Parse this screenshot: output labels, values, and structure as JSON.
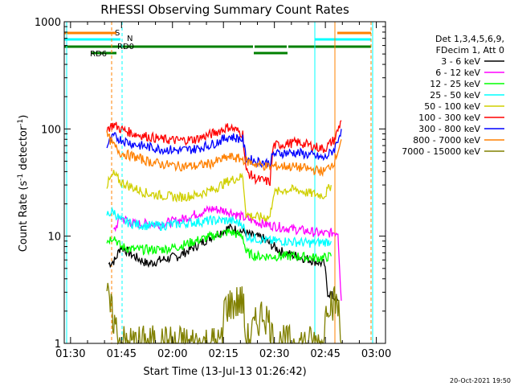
{
  "chart_data": {
    "type": "line",
    "title": "RHESSI Observing Summary Count Rates",
    "xlabel": "Start Time (13-Jul-13 01:26:42)",
    "ylabel_main": "Count Rate (s",
    "ylabel_exp1": "-1",
    "ylabel_mid": " detector",
    "ylabel_exp2": "-1",
    "ylabel_end": ")",
    "y_scale": "log",
    "ylim": [
      1,
      1000
    ],
    "xlim_minutes": [
      1.446,
      96.0
    ],
    "x_ticks": [
      {
        "label": "01:30",
        "m": 3.3
      },
      {
        "label": "01:45",
        "m": 18.3
      },
      {
        "label": "02:00",
        "m": 33.3
      },
      {
        "label": "02:15",
        "m": 48.3
      },
      {
        "label": "02:30",
        "m": 63.3
      },
      {
        "label": "02:45",
        "m": 78.3
      },
      {
        "label": "03:00",
        "m": 93.3
      }
    ],
    "y_ticks": [
      {
        "label": "1",
        "v": 1
      },
      {
        "label": "10",
        "v": 10
      },
      {
        "label": "100",
        "v": 100
      },
      {
        "label": "1000",
        "v": 1000
      }
    ],
    "legend_header": [
      "Det 1,3,4,5,6,9,",
      "FDecim 1, Att 0"
    ],
    "series": [
      {
        "name": "3 - 6 keV",
        "color": "#000000",
        "points": [
          [
            14.5,
            5.5
          ],
          [
            16.5,
            6
          ],
          [
            18,
            8
          ],
          [
            22,
            6.5
          ],
          [
            26,
            5.5
          ],
          [
            30,
            6
          ],
          [
            35,
            6.5
          ],
          [
            40,
            8
          ],
          [
            45,
            10
          ],
          [
            50,
            12
          ],
          [
            54,
            11
          ],
          [
            57,
            10
          ],
          [
            60,
            9.5
          ],
          [
            63,
            8
          ],
          [
            66,
            7
          ],
          [
            70,
            6.5
          ],
          [
            74,
            6
          ],
          [
            78,
            5.5
          ],
          [
            79,
            3
          ],
          [
            82,
            2.5
          ]
        ]
      },
      {
        "name": "6 - 12 keV",
        "color": "#ff00ff",
        "points": [
          [
            16,
            11
          ],
          [
            18,
            15
          ],
          [
            22,
            13
          ],
          [
            26,
            13
          ],
          [
            30,
            13
          ],
          [
            35,
            14
          ],
          [
            40,
            16
          ],
          [
            45,
            18
          ],
          [
            50,
            17
          ],
          [
            54,
            15
          ],
          [
            57,
            14
          ],
          [
            60,
            13
          ],
          [
            63,
            12.5
          ],
          [
            66,
            12
          ],
          [
            70,
            11.5
          ],
          [
            74,
            11
          ],
          [
            78,
            10.5
          ],
          [
            82,
            11
          ],
          [
            83,
            2.5
          ]
        ]
      },
      {
        "name": "12 - 25 keV",
        "color": "#00ff00",
        "points": [
          [
            14,
            9
          ],
          [
            16,
            10
          ],
          [
            18,
            8
          ],
          [
            22,
            7.5
          ],
          [
            26,
            7.5
          ],
          [
            30,
            7.5
          ],
          [
            35,
            8
          ],
          [
            40,
            9
          ],
          [
            45,
            10
          ],
          [
            50,
            11
          ],
          [
            54,
            10
          ],
          [
            55,
            7
          ],
          [
            58,
            6.5
          ],
          [
            62,
            6.5
          ],
          [
            66,
            6.5
          ],
          [
            70,
            6.5
          ],
          [
            74,
            6.3
          ],
          [
            78,
            6.3
          ],
          [
            80,
            6.5
          ]
        ]
      },
      {
        "name": "25 - 50 keV",
        "color": "#00ffff",
        "points": [
          [
            14,
            16
          ],
          [
            16,
            17
          ],
          [
            18,
            14
          ],
          [
            22,
            13
          ],
          [
            26,
            12.5
          ],
          [
            30,
            12.5
          ],
          [
            35,
            13
          ],
          [
            40,
            13.5
          ],
          [
            45,
            14
          ],
          [
            50,
            14
          ],
          [
            54,
            13
          ],
          [
            55,
            10
          ],
          [
            58,
            9.5
          ],
          [
            62,
            9
          ],
          [
            66,
            9
          ],
          [
            70,
            8.8
          ],
          [
            74,
            8.6
          ],
          [
            78,
            8.8
          ],
          [
            80,
            9
          ]
        ]
      },
      {
        "name": "50 - 100 keV",
        "color": "#d0d000",
        "points": [
          [
            14,
            30
          ],
          [
            16,
            38
          ],
          [
            18,
            32
          ],
          [
            22,
            28
          ],
          [
            26,
            25
          ],
          [
            30,
            24
          ],
          [
            35,
            23
          ],
          [
            40,
            24
          ],
          [
            45,
            27
          ],
          [
            50,
            33
          ],
          [
            54,
            36
          ],
          [
            55,
            16
          ],
          [
            58,
            15
          ],
          [
            62,
            15
          ],
          [
            63,
            25
          ],
          [
            66,
            27
          ],
          [
            70,
            27
          ],
          [
            74,
            25
          ],
          [
            78,
            24
          ],
          [
            80,
            30
          ]
        ]
      },
      {
        "name": "100 - 300 keV",
        "color": "#ff0000",
        "points": [
          [
            14,
            100
          ],
          [
            16,
            110
          ],
          [
            18,
            100
          ],
          [
            22,
            90
          ],
          [
            26,
            85
          ],
          [
            30,
            80
          ],
          [
            35,
            78
          ],
          [
            40,
            80
          ],
          [
            45,
            90
          ],
          [
            50,
            105
          ],
          [
            54,
            90
          ],
          [
            55,
            40
          ],
          [
            58,
            34
          ],
          [
            62,
            32
          ],
          [
            63,
            70
          ],
          [
            66,
            72
          ],
          [
            70,
            75
          ],
          [
            74,
            70
          ],
          [
            78,
            65
          ],
          [
            81,
            80
          ],
          [
            83,
            120
          ]
        ]
      },
      {
        "name": "300 - 800 keV",
        "color": "#0000ff",
        "points": [
          [
            14,
            70
          ],
          [
            16,
            85
          ],
          [
            18,
            80
          ],
          [
            22,
            72
          ],
          [
            26,
            68
          ],
          [
            30,
            65
          ],
          [
            35,
            63
          ],
          [
            40,
            65
          ],
          [
            45,
            72
          ],
          [
            50,
            85
          ],
          [
            54,
            80
          ],
          [
            55,
            53
          ],
          [
            58,
            50
          ],
          [
            62,
            48
          ],
          [
            63,
            58
          ],
          [
            66,
            60
          ],
          [
            70,
            60
          ],
          [
            74,
            57
          ],
          [
            78,
            53
          ],
          [
            81,
            65
          ],
          [
            83,
            100
          ]
        ]
      },
      {
        "name": "800 - 7000 keV",
        "color": "#ff8000",
        "points": [
          [
            14,
            88
          ],
          [
            16,
            70
          ],
          [
            18,
            60
          ],
          [
            22,
            55
          ],
          [
            26,
            50
          ],
          [
            30,
            47
          ],
          [
            35,
            45
          ],
          [
            40,
            45
          ],
          [
            45,
            48
          ],
          [
            50,
            55
          ],
          [
            54,
            52
          ],
          [
            55,
            50
          ],
          [
            58,
            47
          ],
          [
            62,
            44
          ],
          [
            63,
            45
          ],
          [
            66,
            45
          ],
          [
            70,
            44
          ],
          [
            74,
            42
          ],
          [
            78,
            40
          ],
          [
            81,
            50
          ],
          [
            83,
            80
          ]
        ]
      },
      {
        "name": "7000 - 15000 keV",
        "color": "#808000",
        "points": [
          [
            14,
            2.7
          ],
          [
            18,
            1
          ],
          [
            20,
            1
          ],
          [
            48,
            1
          ],
          [
            48.5,
            2.2
          ],
          [
            54,
            2.5
          ],
          [
            55,
            1
          ],
          [
            60,
            2
          ],
          [
            62,
            1.5
          ],
          [
            63,
            1
          ],
          [
            78,
            1
          ],
          [
            78.5,
            2.6
          ],
          [
            82,
            2.3
          ],
          [
            83,
            1
          ]
        ]
      }
    ],
    "annotations": {
      "flag_labels": [
        "S",
        "N",
        "RD6",
        "RD0"
      ],
      "footer_date": "20-Oct-2021 19:50"
    }
  }
}
